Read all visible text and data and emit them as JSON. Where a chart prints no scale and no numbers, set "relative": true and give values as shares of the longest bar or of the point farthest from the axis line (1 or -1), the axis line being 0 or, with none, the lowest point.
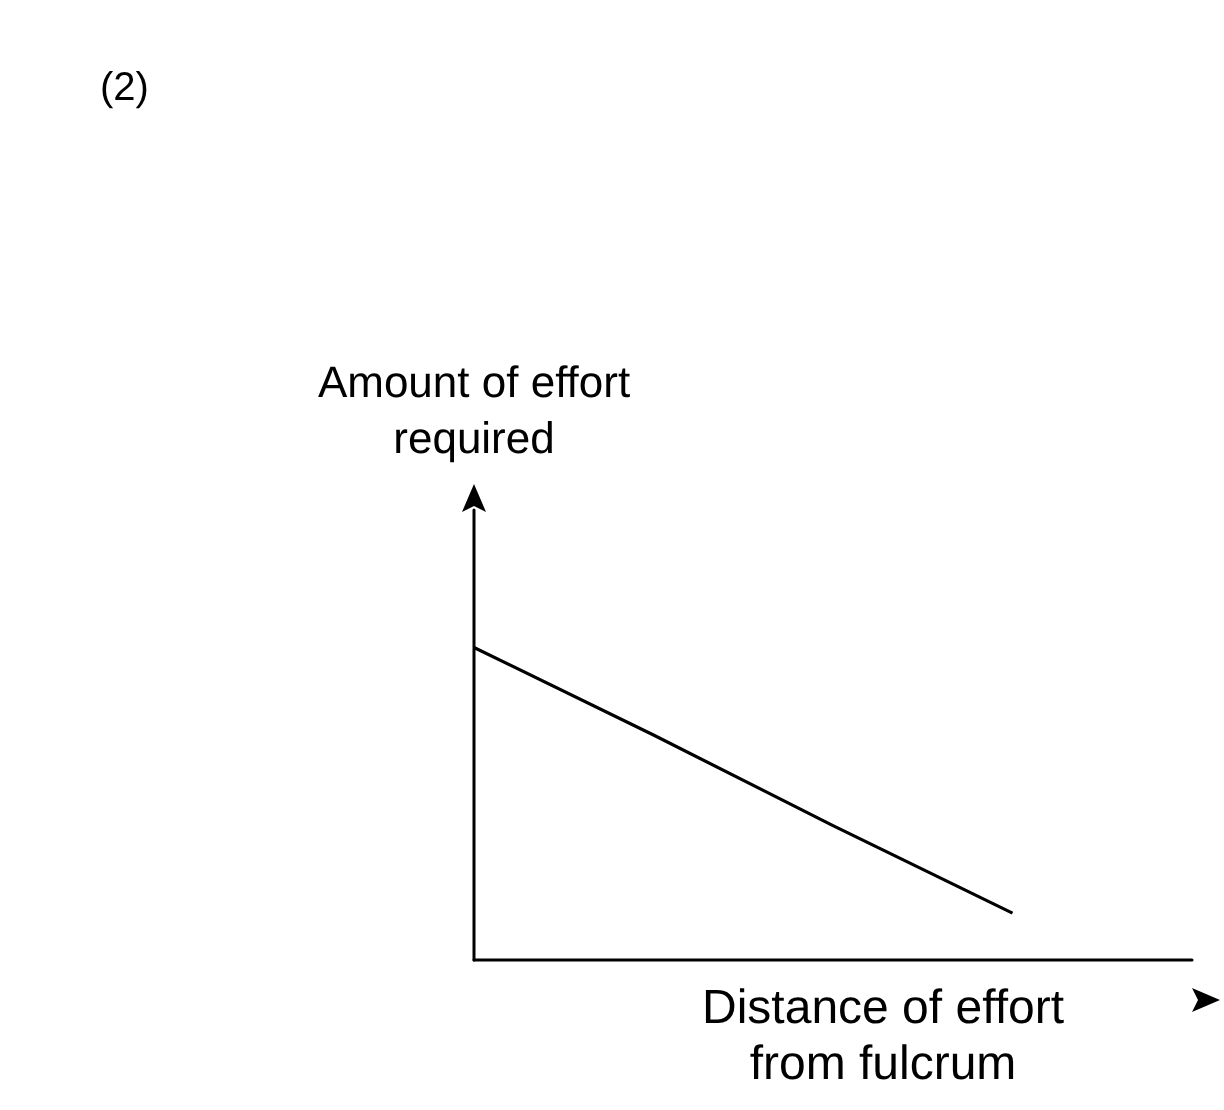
{
  "chart_data": {
    "type": "line",
    "relative": true,
    "ylabel": "Amount of effort required",
    "xlabel": "Distance of effort from fulcrum",
    "annotations": [
      "(2)"
    ],
    "categories": [
      null,
      null,
      null,
      null,
      null
    ],
    "series": [
      {
        "color": "#000000",
        "values": [
          1,
          0.72,
          0.43,
          0.15,
          null
        ]
      }
    ],
    "marker": "none",
    "grid": false
  }
}
